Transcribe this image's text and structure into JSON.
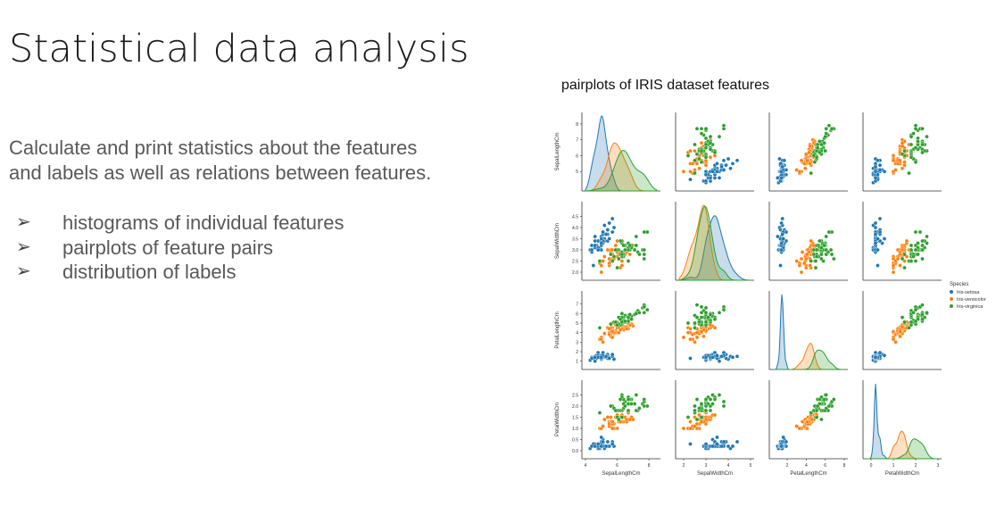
{
  "slide": {
    "title": "Statistical data analysis",
    "description_line1": "Calculate and print statistics about the features",
    "description_line2": "and labels as well as relations between features.",
    "bullet_marker": "➢",
    "bullets": [
      "histograms of individual features",
      "pairplots of feature pairs",
      "distribution of labels"
    ]
  },
  "chart_data": {
    "type": "scatter",
    "subtype": "pairplot",
    "title": "pairplots of IRIS dataset features",
    "features": [
      "SepalLengthCm",
      "SepalWidthCm",
      "PetalLengthCm",
      "PetalWidthCm"
    ],
    "legend": {
      "title": "Species",
      "placement": "right",
      "entries": [
        "Iris-setosa",
        "Iris-versicolor",
        "Iris-virginica"
      ]
    },
    "colors": {
      "Iris-setosa": "#1f77b4",
      "Iris-versicolor": "#ff7f0e",
      "Iris-virginica": "#2ca02c"
    },
    "axes": {
      "SepalLengthCm": {
        "range": [
          4,
          8.5
        ],
        "ticks": [
          4,
          6,
          8
        ],
        "row_ticks": [
          5,
          6,
          7,
          8
        ]
      },
      "SepalWidthCm": {
        "range": [
          1.8,
          5
        ],
        "ticks": [
          2,
          3,
          4,
          5
        ],
        "row_ticks": [
          2.0,
          2.5,
          3.0,
          3.5,
          4.0,
          4.5
        ]
      },
      "PetalLengthCm": {
        "range": [
          0.5,
          8
        ],
        "ticks": [
          2,
          4,
          6,
          8
        ],
        "row_ticks": [
          1,
          2,
          3,
          4,
          5,
          6,
          7
        ]
      },
      "PetalWidthCm": {
        "range": [
          -0.2,
          3
        ],
        "ticks": [
          0,
          1,
          2,
          3
        ],
        "row_ticks": [
          0.0,
          0.5,
          1.0,
          1.5,
          2.0,
          2.5
        ]
      }
    },
    "series": [
      {
        "name": "Iris-setosa",
        "points": [
          [
            5.1,
            3.5,
            1.4,
            0.2
          ],
          [
            4.9,
            3.0,
            1.4,
            0.2
          ],
          [
            4.7,
            3.2,
            1.3,
            0.2
          ],
          [
            4.6,
            3.1,
            1.5,
            0.2
          ],
          [
            5.0,
            3.6,
            1.4,
            0.2
          ],
          [
            5.4,
            3.9,
            1.7,
            0.4
          ],
          [
            4.6,
            3.4,
            1.4,
            0.3
          ],
          [
            5.0,
            3.4,
            1.5,
            0.2
          ],
          [
            4.4,
            2.9,
            1.4,
            0.2
          ],
          [
            4.9,
            3.1,
            1.5,
            0.1
          ],
          [
            5.4,
            3.7,
            1.5,
            0.2
          ],
          [
            4.8,
            3.4,
            1.6,
            0.2
          ],
          [
            4.8,
            3.0,
            1.4,
            0.1
          ],
          [
            4.3,
            3.0,
            1.1,
            0.1
          ],
          [
            5.8,
            4.0,
            1.2,
            0.2
          ],
          [
            5.7,
            4.4,
            1.5,
            0.4
          ],
          [
            5.4,
            3.9,
            1.3,
            0.4
          ],
          [
            5.1,
            3.5,
            1.4,
            0.3
          ],
          [
            5.7,
            3.8,
            1.7,
            0.3
          ],
          [
            5.1,
            3.8,
            1.5,
            0.3
          ],
          [
            5.4,
            3.4,
            1.7,
            0.2
          ],
          [
            5.1,
            3.7,
            1.5,
            0.4
          ],
          [
            4.6,
            3.6,
            1.0,
            0.2
          ],
          [
            5.1,
            3.3,
            1.7,
            0.5
          ],
          [
            4.8,
            3.4,
            1.9,
            0.2
          ],
          [
            5.0,
            3.0,
            1.6,
            0.2
          ],
          [
            5.0,
            3.4,
            1.6,
            0.4
          ],
          [
            5.2,
            3.5,
            1.5,
            0.2
          ],
          [
            5.2,
            3.4,
            1.4,
            0.2
          ],
          [
            4.7,
            3.2,
            1.6,
            0.2
          ],
          [
            4.8,
            3.1,
            1.6,
            0.2
          ],
          [
            5.4,
            3.4,
            1.5,
            0.4
          ],
          [
            5.2,
            4.1,
            1.5,
            0.1
          ],
          [
            5.5,
            4.2,
            1.4,
            0.2
          ],
          [
            5.0,
            3.2,
            1.2,
            0.2
          ],
          [
            5.5,
            3.5,
            1.3,
            0.2
          ],
          [
            4.4,
            3.0,
            1.3,
            0.2
          ],
          [
            5.1,
            3.4,
            1.5,
            0.2
          ],
          [
            5.0,
            3.5,
            1.3,
            0.3
          ],
          [
            4.5,
            2.3,
            1.3,
            0.3
          ],
          [
            4.4,
            3.2,
            1.3,
            0.2
          ],
          [
            5.0,
            3.5,
            1.6,
            0.6
          ],
          [
            5.1,
            3.8,
            1.9,
            0.4
          ],
          [
            4.8,
            3.0,
            1.4,
            0.3
          ],
          [
            5.1,
            3.8,
            1.6,
            0.2
          ],
          [
            4.6,
            3.2,
            1.4,
            0.2
          ],
          [
            5.3,
            3.7,
            1.5,
            0.2
          ],
          [
            5.0,
            3.3,
            1.4,
            0.2
          ]
        ]
      },
      {
        "name": "Iris-versicolor",
        "points": [
          [
            7.0,
            3.2,
            4.7,
            1.4
          ],
          [
            6.4,
            3.2,
            4.5,
            1.5
          ],
          [
            6.9,
            3.1,
            4.9,
            1.5
          ],
          [
            5.5,
            2.3,
            4.0,
            1.3
          ],
          [
            6.5,
            2.8,
            4.6,
            1.5
          ],
          [
            5.7,
            2.8,
            4.5,
            1.3
          ],
          [
            6.3,
            3.3,
            4.7,
            1.6
          ],
          [
            4.9,
            2.4,
            3.3,
            1.0
          ],
          [
            6.6,
            2.9,
            4.6,
            1.3
          ],
          [
            5.2,
            2.7,
            3.9,
            1.4
          ],
          [
            5.0,
            2.0,
            3.5,
            1.0
          ],
          [
            5.9,
            3.0,
            4.2,
            1.5
          ],
          [
            6.0,
            2.2,
            4.0,
            1.0
          ],
          [
            6.1,
            2.9,
            4.7,
            1.4
          ],
          [
            5.6,
            2.9,
            3.6,
            1.3
          ],
          [
            6.7,
            3.1,
            4.4,
            1.4
          ],
          [
            5.6,
            3.0,
            4.5,
            1.5
          ],
          [
            5.8,
            2.7,
            4.1,
            1.0
          ],
          [
            6.2,
            2.2,
            4.5,
            1.5
          ],
          [
            5.6,
            2.5,
            3.9,
            1.1
          ],
          [
            5.9,
            3.2,
            4.8,
            1.8
          ],
          [
            6.1,
            2.8,
            4.0,
            1.3
          ],
          [
            6.3,
            2.5,
            4.9,
            1.5
          ],
          [
            6.4,
            2.9,
            4.3,
            1.3
          ],
          [
            6.6,
            3.0,
            4.4,
            1.4
          ],
          [
            6.8,
            2.8,
            4.8,
            1.4
          ],
          [
            6.7,
            3.0,
            5.0,
            1.7
          ],
          [
            6.0,
            2.9,
            4.5,
            1.5
          ],
          [
            5.7,
            2.6,
            3.5,
            1.0
          ],
          [
            5.5,
            2.4,
            3.8,
            1.1
          ],
          [
            5.8,
            2.7,
            3.9,
            1.2
          ],
          [
            6.0,
            2.7,
            5.1,
            1.6
          ],
          [
            5.4,
            3.0,
            4.5,
            1.5
          ],
          [
            6.0,
            3.4,
            4.5,
            1.6
          ],
          [
            6.3,
            2.3,
            4.4,
            1.3
          ],
          [
            5.6,
            3.0,
            4.1,
            1.3
          ],
          [
            5.5,
            2.6,
            4.4,
            1.2
          ],
          [
            6.1,
            3.0,
            4.6,
            1.4
          ],
          [
            5.8,
            2.6,
            4.0,
            1.2
          ],
          [
            5.0,
            2.3,
            3.3,
            1.0
          ],
          [
            5.7,
            3.0,
            4.2,
            1.2
          ],
          [
            6.2,
            2.9,
            4.3,
            1.3
          ],
          [
            5.1,
            2.5,
            3.0,
            1.1
          ],
          [
            5.7,
            2.8,
            4.1,
            1.3
          ]
        ]
      },
      {
        "name": "Iris-virginica",
        "points": [
          [
            6.3,
            3.3,
            6.0,
            2.5
          ],
          [
            5.8,
            2.7,
            5.1,
            1.9
          ],
          [
            7.1,
            3.0,
            5.9,
            2.1
          ],
          [
            6.3,
            2.9,
            5.6,
            1.8
          ],
          [
            6.5,
            3.0,
            5.8,
            2.2
          ],
          [
            7.6,
            3.0,
            6.6,
            2.1
          ],
          [
            4.9,
            2.5,
            4.5,
            1.7
          ],
          [
            7.3,
            2.9,
            6.3,
            1.8
          ],
          [
            6.7,
            2.5,
            5.8,
            1.8
          ],
          [
            7.2,
            3.6,
            6.1,
            2.5
          ],
          [
            6.5,
            3.2,
            5.1,
            2.0
          ],
          [
            6.4,
            2.7,
            5.3,
            1.9
          ],
          [
            6.8,
            3.0,
            5.5,
            2.1
          ],
          [
            5.7,
            2.5,
            5.0,
            2.0
          ],
          [
            6.4,
            3.2,
            5.3,
            2.3
          ],
          [
            7.7,
            3.8,
            6.7,
            2.2
          ],
          [
            7.7,
            2.6,
            6.9,
            2.3
          ],
          [
            6.0,
            2.2,
            5.0,
            1.5
          ],
          [
            6.9,
            3.2,
            5.7,
            2.3
          ],
          [
            5.6,
            2.8,
            4.9,
            2.0
          ],
          [
            7.7,
            2.8,
            6.7,
            2.0
          ],
          [
            6.3,
            2.7,
            4.9,
            1.8
          ],
          [
            6.7,
            3.3,
            5.7,
            2.1
          ],
          [
            7.2,
            3.2,
            6.0,
            1.8
          ],
          [
            6.2,
            2.8,
            4.8,
            1.8
          ],
          [
            6.1,
            3.0,
            4.9,
            1.8
          ],
          [
            6.4,
            2.8,
            5.6,
            2.1
          ],
          [
            7.4,
            2.8,
            6.1,
            1.9
          ],
          [
            7.9,
            3.8,
            6.4,
            2.0
          ],
          [
            6.3,
            2.8,
            5.1,
            1.5
          ],
          [
            6.1,
            2.6,
            5.6,
            1.4
          ],
          [
            7.7,
            3.0,
            6.1,
            2.3
          ],
          [
            6.3,
            3.4,
            5.6,
            2.4
          ],
          [
            6.0,
            3.0,
            4.8,
            1.8
          ],
          [
            6.9,
            3.1,
            5.4,
            2.1
          ],
          [
            6.7,
            3.1,
            5.6,
            2.4
          ],
          [
            5.8,
            2.7,
            5.1,
            1.9
          ],
          [
            6.8,
            3.2,
            5.9,
            2.3
          ],
          [
            6.7,
            3.0,
            5.2,
            2.3
          ],
          [
            6.5,
            3.0,
            5.2,
            2.0
          ],
          [
            6.2,
            3.4,
            5.4,
            2.3
          ],
          [
            5.9,
            3.0,
            5.1,
            1.8
          ]
        ]
      }
    ]
  }
}
